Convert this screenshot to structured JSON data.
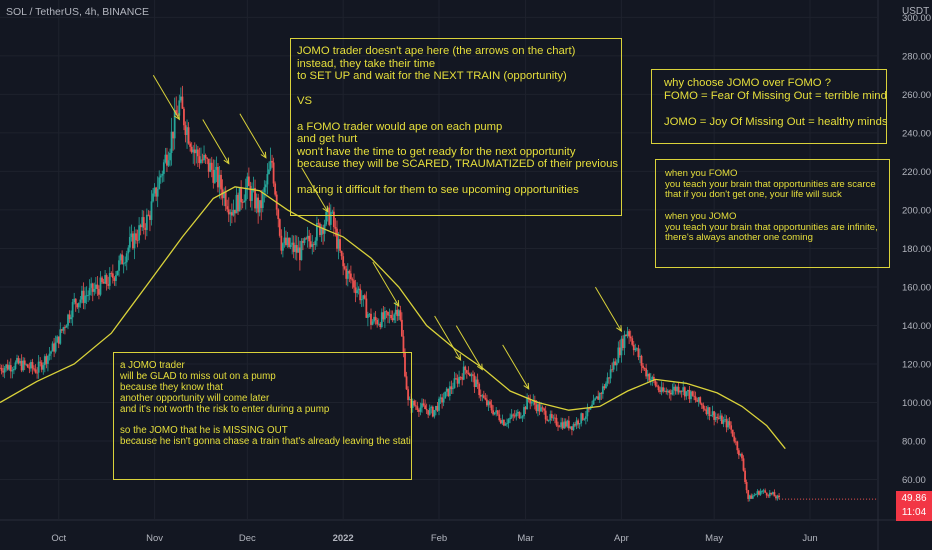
{
  "header": {
    "symbol": "SOL / TetherUS, 4h, BINANCE",
    "currency": "USDT"
  },
  "price_label": {
    "price": "49.86",
    "countdown": "11:04",
    "color": "#f23645"
  },
  "colors": {
    "background": "#131722",
    "up": "#26a69a",
    "down": "#ef5350",
    "ma": "#d9d23a",
    "note_text": "#e6df3c"
  },
  "notes": {
    "jomo_vs_fomo": "JOMO trader doesn't ape here (the arrows on the chart)\ninstead, they take their time\nto SET UP and wait for the NEXT TRAIN (opportunity)\n\nVS\n\na FOMO trader would ape on each pump\nand get hurt\nwon't have the time to get ready for the next opportunity\nbecause they will be SCARED, TRAUMATIZED of their previous loss\n\nmaking it difficult for them to see upcoming opportunities",
    "why_jomo": "why choose JOMO over FOMO ?\nFOMO = Fear Of Missing Out = terrible mindset\n\nJOMO = Joy Of Missing Out = healthy mindset",
    "brain": "when you FOMO\nyou teach your brain that opportunities are scarce\nthat if you don't get one, your life will suck\n\nwhen you JOMO\nyou teach your brain that opportunities are infinite,\nthere's always another one coming",
    "glad": "a JOMO trader\nwill be GLAD to miss out on a pump\nbecause they know that\nanother opportunity will come later\nand it's not worth the risk to enter during a pump\n\nso the JOMO that he is MISSING OUT\nbecause he isn't gonna chase a train that's already leaving the station"
  },
  "chart_data": {
    "type": "candlestick",
    "symbol": "SOL / TetherUS",
    "interval": "4h",
    "exchange": "BINANCE",
    "y_ticks": [
      60,
      80,
      100,
      120,
      140,
      160,
      180,
      200,
      220,
      240,
      260,
      280,
      300
    ],
    "y_tick_labels": [
      "60.00",
      "80.00",
      "100.00",
      "120.00",
      "140.00",
      "160.00",
      "180.00",
      "200.00",
      "220.00",
      "240.00",
      "260.00",
      "280.00",
      "300.00"
    ],
    "ylim": [
      39,
      309
    ],
    "x_ticks": [
      "Oct",
      "Nov",
      "Dec",
      "2022",
      "Feb",
      "Mar",
      "Apr",
      "May",
      "Jun"
    ],
    "x_range": [
      "2021-09-12",
      "2022-06-23"
    ],
    "x_tick_dates": [
      "2021-10-01",
      "2021-11-01",
      "2021-12-01",
      "2022-01-01",
      "2022-02-01",
      "2022-03-01",
      "2022-04-01",
      "2022-05-01",
      "2022-06-01"
    ],
    "close_path_approx": [
      [
        "2021-09-12",
        118
      ],
      [
        "2021-09-18",
        120
      ],
      [
        "2021-09-24",
        117
      ],
      [
        "2021-09-30",
        130
      ],
      [
        "2021-10-06",
        152
      ],
      [
        "2021-10-12",
        158
      ],
      [
        "2021-10-18",
        164
      ],
      [
        "2021-10-24",
        182
      ],
      [
        "2021-10-30",
        196
      ],
      [
        "2021-11-06",
        235
      ],
      [
        "2021-11-09",
        255
      ],
      [
        "2021-11-14",
        230
      ],
      [
        "2021-11-20",
        220
      ],
      [
        "2021-11-26",
        200
      ],
      [
        "2021-12-01",
        212
      ],
      [
        "2021-12-05",
        200
      ],
      [
        "2021-12-09",
        225
      ],
      [
        "2021-12-12",
        183
      ],
      [
        "2021-12-18",
        178
      ],
      [
        "2021-12-24",
        190
      ],
      [
        "2021-12-28",
        198
      ],
      [
        "2022-01-01",
        170
      ],
      [
        "2022-01-06",
        158
      ],
      [
        "2022-01-10",
        142
      ],
      [
        "2022-01-16",
        144
      ],
      [
        "2022-01-19",
        150
      ],
      [
        "2022-01-22",
        100
      ],
      [
        "2022-01-30",
        95
      ],
      [
        "2022-02-06",
        110
      ],
      [
        "2022-02-10",
        118
      ],
      [
        "2022-02-16",
        100
      ],
      [
        "2022-02-22",
        90
      ],
      [
        "2022-02-28",
        95
      ],
      [
        "2022-03-02",
        102
      ],
      [
        "2022-03-10",
        90
      ],
      [
        "2022-03-16",
        88
      ],
      [
        "2022-03-22",
        96
      ],
      [
        "2022-03-27",
        110
      ],
      [
        "2022-04-01",
        130
      ],
      [
        "2022-04-03",
        138
      ],
      [
        "2022-04-08",
        118
      ],
      [
        "2022-04-14",
        105
      ],
      [
        "2022-04-20",
        108
      ],
      [
        "2022-04-26",
        100
      ],
      [
        "2022-05-02",
        92
      ],
      [
        "2022-05-06",
        88
      ],
      [
        "2022-05-10",
        70
      ],
      [
        "2022-05-12",
        50
      ],
      [
        "2022-05-16",
        54
      ],
      [
        "2022-05-20",
        52
      ],
      [
        "2022-05-22",
        49.86
      ]
    ],
    "moving_average_approx": [
      [
        "2021-09-12",
        100
      ],
      [
        "2021-09-24",
        111
      ],
      [
        "2021-10-06",
        120
      ],
      [
        "2021-10-18",
        136
      ],
      [
        "2021-10-30",
        162
      ],
      [
        "2021-11-10",
        186
      ],
      [
        "2021-11-20",
        206
      ],
      [
        "2021-11-27",
        212
      ],
      [
        "2021-12-05",
        210
      ],
      [
        "2021-12-14",
        200
      ],
      [
        "2021-12-23",
        192
      ],
      [
        "2022-01-01",
        186
      ],
      [
        "2022-01-10",
        175
      ],
      [
        "2022-01-19",
        160
      ],
      [
        "2022-01-28",
        140
      ],
      [
        "2022-02-06",
        128
      ],
      [
        "2022-02-15",
        118
      ],
      [
        "2022-02-24",
        106
      ],
      [
        "2022-03-05",
        100
      ],
      [
        "2022-03-15",
        96
      ],
      [
        "2022-03-25",
        98
      ],
      [
        "2022-04-03",
        106
      ],
      [
        "2022-04-12",
        112
      ],
      [
        "2022-04-22",
        110
      ],
      [
        "2022-05-02",
        105
      ],
      [
        "2022-05-10",
        98
      ],
      [
        "2022-05-18",
        88
      ],
      [
        "2022-05-24",
        76
      ]
    ],
    "arrows_price_at_tip": [
      [
        "2021-11-09",
        245
      ],
      [
        "2021-11-25",
        222
      ],
      [
        "2021-12-07",
        225
      ],
      [
        "2021-12-27",
        197
      ],
      [
        "2022-01-19",
        148
      ],
      [
        "2022-02-08",
        120
      ],
      [
        "2022-02-15",
        115
      ],
      [
        "2022-03-02",
        105
      ],
      [
        "2022-04-01",
        135
      ]
    ]
  }
}
